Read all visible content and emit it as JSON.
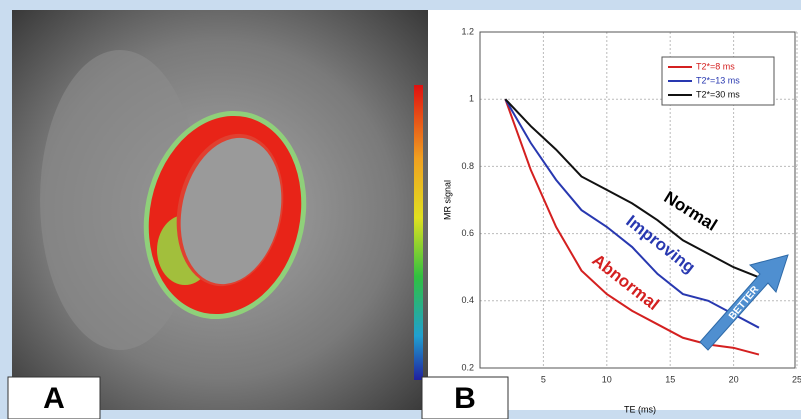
{
  "panel_labels": [
    "A",
    "B"
  ],
  "chart_data": {
    "type": "line",
    "x_label": "TE (ms)",
    "y_label": "MR signal",
    "x": [
      2,
      4,
      6,
      8,
      10,
      12,
      14,
      16,
      18,
      20,
      22
    ],
    "series": [
      {
        "name": "T2*=8 ms",
        "color": "#d42020",
        "values": [
          1,
          0.79,
          0.62,
          0.49,
          0.42,
          0.37,
          0.33,
          0.29,
          0.27,
          0.26,
          0.24
        ]
      },
      {
        "name": "T2*=13 ms",
        "color": "#2838b0",
        "values": [
          1,
          0.87,
          0.76,
          0.67,
          0.62,
          0.56,
          0.48,
          0.42,
          0.4,
          0.36,
          0.32
        ]
      },
      {
        "name": "T2*=30 ms",
        "color": "#111111",
        "values": [
          1,
          0.92,
          0.85,
          0.77,
          0.73,
          0.69,
          0.64,
          0.58,
          0.54,
          0.5,
          0.47
        ]
      }
    ],
    "xlim": [
      0,
      25
    ],
    "xticks": [
      5,
      10,
      15,
      20,
      25
    ],
    "ylim": [
      0.2,
      1.2
    ],
    "yticks": [
      0.2,
      0.4,
      0.6,
      0.8,
      1,
      1.2
    ],
    "grid": true,
    "legend": "upper right",
    "annotations": [
      {
        "text": "Normal",
        "color": "#000000"
      },
      {
        "text": "Improving",
        "color": "#2838b0"
      },
      {
        "text": "Abnormal",
        "color": "#d42020"
      },
      {
        "text": "BETTER",
        "color": "#ffffff"
      }
    ]
  }
}
